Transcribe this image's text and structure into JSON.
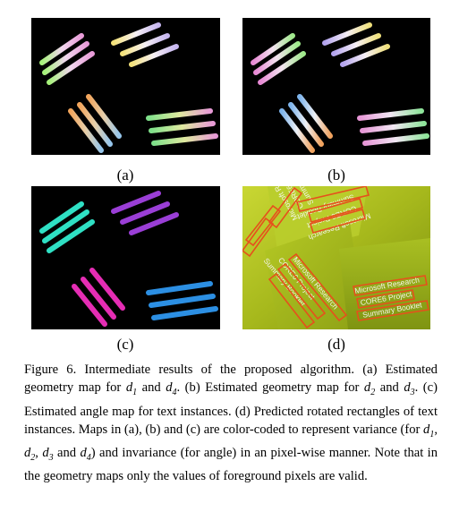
{
  "panels": [
    {
      "id": "a",
      "label": "(a)"
    },
    {
      "id": "b",
      "label": "(b)"
    },
    {
      "id": "c",
      "label": "(c)"
    },
    {
      "id": "d",
      "label": "(d)"
    }
  ],
  "panel_d_text": {
    "top_card": [
      "Microsoft Research",
      "CORE6 Project",
      "Summary Booklet"
    ],
    "left_card": [
      "Microsoft Research",
      "CORE6 Project",
      "Summary Booklet"
    ],
    "right_card": [
      "Microsoft Research",
      "CORE6 Project",
      "Summary Booklet"
    ]
  },
  "caption": {
    "figure": "Figure 6.",
    "text": "Intermediate results of the proposed algorithm. (a) Estimated geometry map for d1 and d4. (b) Estimated geometry map for d2 and d3. (c) Estimated angle map for text instances. (d) Predicted rotated rectangles of text instances. Maps in (a), (b) and (c) are color-coded to represent variance (for d1, d2, d3 and d4) and invariance (for angle) in an pixel-wise manner. Note that in the geometry maps only the values of foreground pixels are valid."
  }
}
